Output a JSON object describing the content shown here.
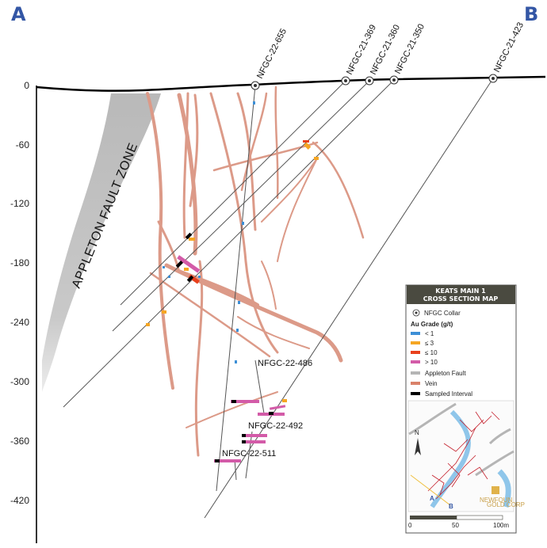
{
  "section": {
    "left_label": "A",
    "right_label": "B",
    "depth_ticks": [
      "0",
      "-60",
      "-120",
      "-180",
      "-240",
      "-300",
      "-360",
      "-420"
    ],
    "fault_zone_label": "APPLETON FAULT ZONE"
  },
  "drillholes": [
    {
      "id": "NFGC-22-655"
    },
    {
      "id": "NFGC-21-369"
    },
    {
      "id": "NFGC-21-360"
    },
    {
      "id": "NFGC-21-350"
    },
    {
      "id": "NFGC-21-423"
    },
    {
      "id": "NFGC-22-486"
    },
    {
      "id": "NFGC-22-492"
    },
    {
      "id": "NFGC-22-511"
    }
  ],
  "legend": {
    "title_line1": "KEATS MAIN 1",
    "title_line2": "CROSS SECTION MAP",
    "collar_label": "NFGC Collar",
    "grade_header": "Au Grade (g/t)",
    "grades": [
      {
        "label": "< 1",
        "color": "#3d8fd6"
      },
      {
        "label": "≤ 3",
        "color": "#f5a623"
      },
      {
        "label": "≤ 10",
        "color": "#e8401c"
      },
      {
        "label": "> 10",
        "color": "#d35ba8"
      }
    ],
    "features": [
      {
        "label": "Appleton Fault",
        "color": "#b5b5b5"
      },
      {
        "label": "Vein",
        "color": "#d9826a"
      },
      {
        "label": "Sampled Interval",
        "color": "#000000"
      }
    ],
    "scale_labels": [
      "0",
      "50",
      "100m"
    ],
    "north_label": "N",
    "inset_a": "A",
    "inset_b": "B",
    "logo_line1": "NEWFOUN",
    "logo_line2": "GOLD CORP"
  },
  "colors": {
    "vein": "#dc9a88",
    "fault": "#c7c7c7",
    "label_blue": "#3356a5",
    "legend_header_bg": "#4a4a40"
  }
}
